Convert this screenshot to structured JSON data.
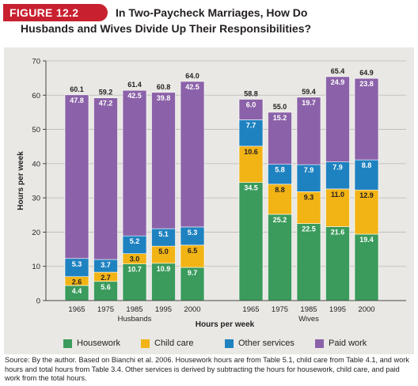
{
  "figure_label": "FIGURE 12.2",
  "title_line1": "In Two-Paycheck Marriages, How Do",
  "title_line2": "Husbands and Wives Divide Up Their Responsibilities?",
  "source": "Source: By the author. Based on Bianchi et al. 2006. Housework hours are from Table 5.1, child care from Table 4.1, and work hours and total hours from Table 3.4. Other services is derived by subtracting the hours for housework, child care, and paid work from the total hours.",
  "chart_data": {
    "type": "bar",
    "stacked": true,
    "title": "In Two-Paycheck Marriages, How Do Husbands and Wives Divide Up Their Responsibilities?",
    "xlabel": "Hours per week",
    "ylabel": "Hours per week",
    "ylim": [
      0,
      70
    ],
    "yticks": [
      0,
      10,
      20,
      30,
      40,
      50,
      60,
      70
    ],
    "grid": true,
    "legend_position": "bottom",
    "groups": [
      {
        "name": "Husbands",
        "categories": [
          "1965",
          "1975",
          "1985",
          "1995",
          "2000"
        ]
      },
      {
        "name": "Wives",
        "categories": [
          "1965",
          "1975",
          "1985",
          "1995",
          "2000"
        ]
      }
    ],
    "series": [
      {
        "name": "Housework",
        "color": "#3a9b5c",
        "values": [
          4.4,
          5.6,
          10.7,
          10.9,
          9.7,
          34.5,
          25.2,
          22.5,
          21.6,
          19.4
        ]
      },
      {
        "name": "Child care",
        "color": "#f2b315",
        "values": [
          2.6,
          2.7,
          3.0,
          5.0,
          6.5,
          10.6,
          8.8,
          9.3,
          11.0,
          12.9
        ]
      },
      {
        "name": "Other services",
        "color": "#1f82c0",
        "values": [
          5.3,
          3.7,
          5.2,
          5.1,
          5.3,
          7.7,
          5.8,
          7.9,
          7.9,
          8.8
        ]
      },
      {
        "name": "Paid work",
        "color": "#8b62a9",
        "values": [
          47.8,
          47.2,
          42.5,
          39.8,
          42.5,
          6.0,
          15.2,
          19.7,
          24.9,
          23.8
        ]
      }
    ],
    "totals": [
      60.1,
      59.2,
      61.4,
      60.8,
      64.0,
      58.8,
      55.0,
      59.4,
      65.4,
      64.9
    ]
  }
}
